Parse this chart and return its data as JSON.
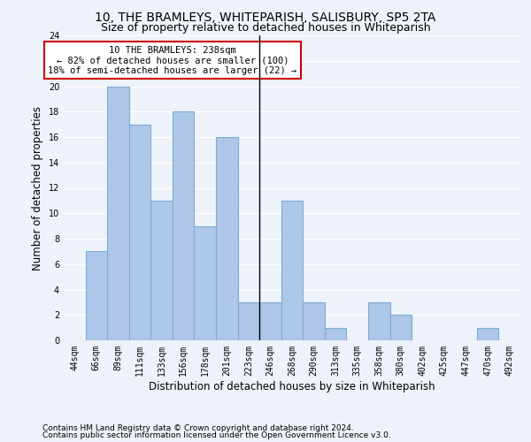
{
  "title": "10, THE BRAMLEYS, WHITEPARISH, SALISBURY, SP5 2TA",
  "subtitle": "Size of property relative to detached houses in Whiteparish",
  "xlabel": "Distribution of detached houses by size in Whiteparish",
  "ylabel": "Number of detached properties",
  "bar_labels": [
    "44sqm",
    "66sqm",
    "89sqm",
    "111sqm",
    "133sqm",
    "156sqm",
    "178sqm",
    "201sqm",
    "223sqm",
    "246sqm",
    "268sqm",
    "290sqm",
    "313sqm",
    "335sqm",
    "358sqm",
    "380sqm",
    "402sqm",
    "425sqm",
    "447sqm",
    "470sqm",
    "492sqm"
  ],
  "bar_values": [
    0,
    7,
    20,
    17,
    11,
    18,
    9,
    16,
    3,
    3,
    11,
    3,
    1,
    0,
    3,
    2,
    0,
    0,
    0,
    1,
    0
  ],
  "bar_color": "#aec6e8",
  "bar_edge_color": "#7aadd4",
  "ylim": [
    0,
    24
  ],
  "yticks": [
    0,
    2,
    4,
    6,
    8,
    10,
    12,
    14,
    16,
    18,
    20,
    22,
    24
  ],
  "vline_x": 8.5,
  "annotation_text": "10 THE BRAMLEYS: 238sqm\n← 82% of detached houses are smaller (100)\n18% of semi-detached houses are larger (22) →",
  "annotation_box_color": "#ffffff",
  "annotation_box_edge_color": "#cc0000",
  "footer_line1": "Contains HM Land Registry data © Crown copyright and database right 2024.",
  "footer_line2": "Contains public sector information licensed under the Open Government Licence v3.0.",
  "background_color": "#eef2fa",
  "grid_color": "#ffffff",
  "title_fontsize": 10,
  "subtitle_fontsize": 9,
  "label_fontsize": 8.5,
  "tick_fontsize": 7,
  "footer_fontsize": 6.5,
  "ann_fontsize": 7.5
}
